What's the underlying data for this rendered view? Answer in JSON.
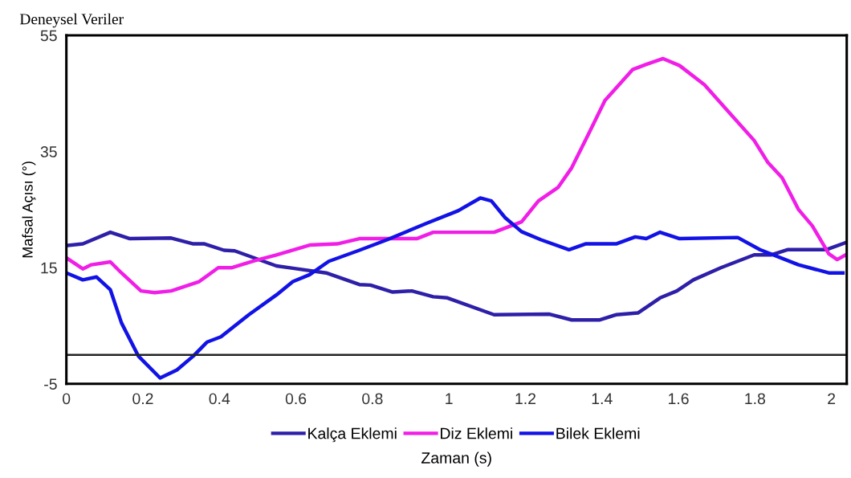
{
  "chart_data": {
    "type": "line",
    "title": "Deneysel Veriler",
    "xlabel": "Zaman (s)",
    "ylabel": "Mafsal Açısı (°)",
    "xlim": [
      0,
      2.04
    ],
    "ylim": [
      -5,
      55
    ],
    "xticks": [
      0,
      0.2,
      0.4,
      0.6,
      0.8,
      1,
      1.2,
      1.4,
      1.6,
      1.8,
      2
    ],
    "yticks": [
      -5,
      15,
      35,
      55
    ],
    "grid": false,
    "legend": "bottom",
    "marker": "none",
    "line_style": "solid",
    "ref_lines": [
      {
        "axis": "y",
        "value": 0,
        "color": "#222222"
      }
    ],
    "series": [
      {
        "name": "Kalça Eklemi",
        "color": "#2e1fa8",
        "x": [
          0,
          0.043,
          0.115,
          0.166,
          0.274,
          0.332,
          0.361,
          0.412,
          0.44,
          0.549,
          0.592,
          0.679,
          0.766,
          0.795,
          0.853,
          0.903,
          0.959,
          0.996,
          1.118,
          1.263,
          1.321,
          1.393,
          1.437,
          1.494,
          1.552,
          1.596,
          1.639,
          1.711,
          1.798,
          1.842,
          1.885,
          1.986,
          2.037
        ],
        "values": [
          18.8,
          19.1,
          21.1,
          20.0,
          20.1,
          19.1,
          19.1,
          18.0,
          17.9,
          15.3,
          14.9,
          14.1,
          12.1,
          12.0,
          10.8,
          11.0,
          10.0,
          9.8,
          6.9,
          7.0,
          6.0,
          6.0,
          6.9,
          7.2,
          9.8,
          11.0,
          12.9,
          15.0,
          17.2,
          17.2,
          18.1,
          18.1,
          19.3
        ]
      },
      {
        "name": "Diz Eklemi",
        "color": "#f01ee6",
        "x": [
          0,
          0.043,
          0.065,
          0.115,
          0.144,
          0.195,
          0.231,
          0.274,
          0.347,
          0.397,
          0.433,
          0.491,
          0.549,
          0.636,
          0.708,
          0.766,
          0.838,
          0.916,
          0.959,
          1.118,
          1.19,
          1.234,
          1.285,
          1.321,
          1.364,
          1.408,
          1.48,
          1.516,
          1.56,
          1.603,
          1.668,
          1.733,
          1.798,
          1.834,
          1.871,
          1.914,
          1.95,
          1.993,
          2.015,
          2.037
        ],
        "values": [
          16.7,
          14.8,
          15.5,
          16.0,
          14.1,
          11.0,
          10.7,
          11.0,
          12.6,
          15.0,
          15.0,
          16.2,
          17.2,
          18.9,
          19.1,
          20.0,
          20.0,
          20.0,
          21.1,
          21.1,
          22.9,
          26.5,
          28.8,
          32.2,
          37.9,
          43.8,
          49.1,
          50.0,
          51.0,
          49.8,
          46.5,
          41.7,
          36.9,
          33.1,
          30.5,
          25.0,
          22.2,
          17.4,
          16.4,
          17.2
        ]
      },
      {
        "name": "Bilek Eklemi",
        "color": "#1212e6",
        "x": [
          0,
          0.043,
          0.079,
          0.115,
          0.144,
          0.188,
          0.245,
          0.289,
          0.332,
          0.368,
          0.404,
          0.477,
          0.549,
          0.592,
          0.636,
          0.686,
          0.766,
          0.838,
          0.94,
          1.024,
          1.082,
          1.111,
          1.147,
          1.19,
          1.241,
          1.314,
          1.357,
          1.437,
          1.487,
          1.516,
          1.552,
          1.603,
          1.755,
          1.813,
          1.914,
          1.993,
          2.03
        ],
        "values": [
          14.1,
          12.9,
          13.4,
          11.2,
          5.5,
          -0.2,
          -4.0,
          -2.6,
          -0.2,
          2.2,
          3.1,
          6.9,
          10.3,
          12.6,
          13.8,
          16.1,
          18.0,
          19.8,
          22.6,
          24.8,
          27.0,
          26.5,
          23.6,
          21.2,
          19.8,
          18.1,
          19.1,
          19.1,
          20.3,
          20.0,
          21.1,
          20.0,
          20.2,
          18.1,
          15.5,
          14.1,
          14.1
        ]
      }
    ]
  }
}
